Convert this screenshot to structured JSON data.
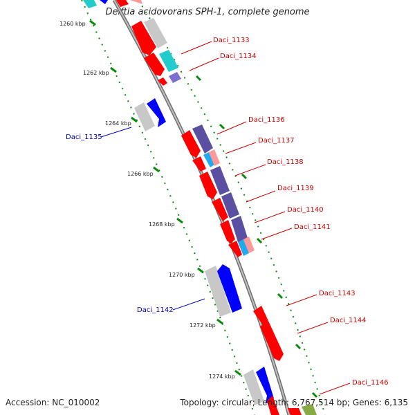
{
  "title": "Delftia acidovorans SPH-1, complete genome",
  "footer": {
    "accession": "Accession: NC_010002",
    "summary": "Topology: circular; Length: 6,767,514 bp; Genes: 6,135"
  },
  "colors": {
    "red_gene": "#ff0000",
    "blue_gene": "#0000ff",
    "slate_gene": "#5a4fa0",
    "cyan_gene": "#22cccc",
    "grey_gene": "#c8c8c8",
    "pink_gene": "#ff9999",
    "tick_green": "#0a8a0a",
    "backbone": "#888888",
    "label_red": "#cc0000",
    "label_blue": "#0000bb"
  },
  "ticks": [
    "1260 kbp",
    "1262 kbp",
    "1264 kbp",
    "1266 kbp",
    "1268 kbp",
    "1270 kbp",
    "1272 kbp",
    "1274 kbp"
  ],
  "gene_labels": [
    {
      "text": "Daci_1133",
      "color": "red"
    },
    {
      "text": "Daci_1134",
      "color": "red"
    },
    {
      "text": "Daci_1135",
      "color": "blue"
    },
    {
      "text": "Daci_1136",
      "color": "red"
    },
    {
      "text": "Daci_1137",
      "color": "red"
    },
    {
      "text": "Daci_1138",
      "color": "red"
    },
    {
      "text": "Daci_1139",
      "color": "red"
    },
    {
      "text": "Daci_1140",
      "color": "red"
    },
    {
      "text": "Daci_1141",
      "color": "red"
    },
    {
      "text": "Daci_1142",
      "color": "blue"
    },
    {
      "text": "Daci_1143",
      "color": "red"
    },
    {
      "text": "Daci_1144",
      "color": "red"
    },
    {
      "text": "Daci_1146",
      "color": "red"
    }
  ]
}
